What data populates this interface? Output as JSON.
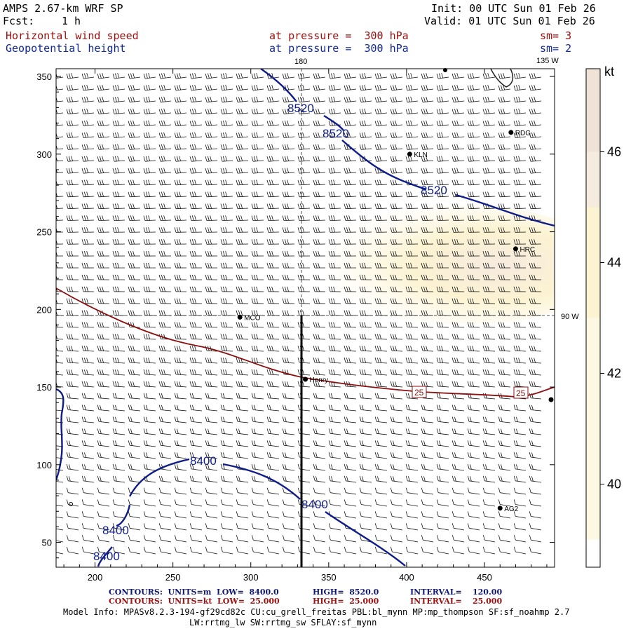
{
  "header": {
    "model": "AMPS 2.67-km WRF SP",
    "fcst_label": "Fcst:",
    "fcst_value": "1 h",
    "init": "Init: 00 UTC Sun 01 Feb 26",
    "valid": "Valid: 01 UTC Sun 01 Feb 26",
    "field1_name": "Horizontal wind speed",
    "field1_level": "at pressure =  300 hPa",
    "field1_sm": "sm= 3",
    "field2_name": "Geopotential height",
    "field2_level": "at pressure =  300 hPa",
    "field2_sm": "sm= 2"
  },
  "meridians": {
    "m180": "180",
    "m135w": "135 W",
    "m90w": "90 W"
  },
  "colors": {
    "wind_contour": "#8b1010",
    "height_contour": "#0f1d8a",
    "shade_40": "#fdf8e2",
    "shade_42": "#fcf3d2",
    "shade_44": "#f6ebdf",
    "shade_46": "#efe2d6"
  },
  "chart_data": {
    "type": "contour",
    "xlim": [
      175,
      495
    ],
    "ylim": [
      34,
      355
    ],
    "x_ticks": [
      200,
      250,
      300,
      350,
      400,
      450
    ],
    "y_ticks": [
      50,
      100,
      150,
      200,
      250,
      300,
      350
    ],
    "colorbar": {
      "unit": "kt",
      "ticks": [
        40,
        42,
        44,
        46
      ],
      "range": [
        38.5,
        47.5
      ]
    },
    "height_contours": [
      {
        "value": 8520,
        "labels": [
          "8520",
          "8520",
          "8520"
        ]
      },
      {
        "value": 8400,
        "labels": [
          "8400",
          "8400",
          "8400",
          "8400"
        ]
      }
    ],
    "wind_contours": [
      {
        "value": 25,
        "labels": [
          "25",
          "25"
        ]
      }
    ],
    "stations": [
      {
        "name": "KLN",
        "x": 402,
        "y": 300
      },
      {
        "name": "RDG",
        "x": 467,
        "y": 314
      },
      {
        "name": "HRC",
        "x": 470,
        "y": 239
      },
      {
        "name": "MCO",
        "x": 293,
        "y": 195
      },
      {
        "name": "Henry",
        "x": 335,
        "y": 155
      },
      {
        "name": "AG2",
        "x": 460,
        "y": 72
      }
    ]
  },
  "footer": {
    "c1_label": "CONTOURS:  UNITS=m  LOW=  8400.0",
    "c1_high": "HIGH=  8520.0",
    "c1_int": "INTERVAL=    120.00",
    "c2_label": "CONTOURS:  UNITS=kt  LOW=  25.000",
    "c2_high": "HIGH=  25.000",
    "c2_int": "INTERVAL=    25.000",
    "model_info": "Model Info: MPASv8.2.3-194-gf29cd82c CU:cu_grell_freitas PBL:bl_mynn MP:mp_thompson SF:sf_noahmp 2.7",
    "model_info2": "LW:rrtmg_lw SW:rrtmg_sw SFLAY:sf_mynn"
  }
}
